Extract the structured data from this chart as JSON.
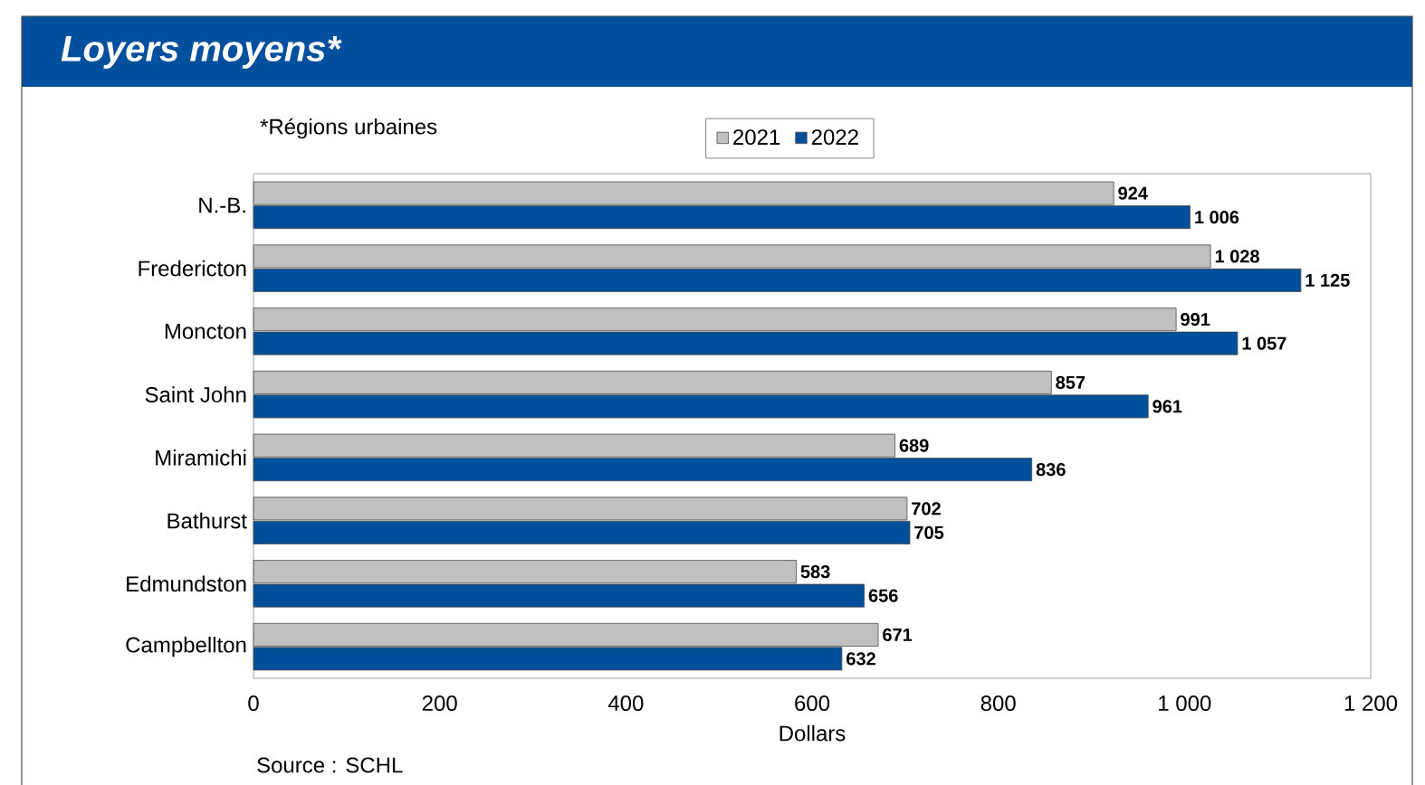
{
  "chart_data": {
    "type": "bar",
    "orientation": "horizontal",
    "title": "Loyers moyens*",
    "subtitle": "*Régions urbaines",
    "xlabel": "Dollars",
    "annotations": [
      "Source : SCHL"
    ],
    "categories": [
      "N.-B.",
      "Fredericton",
      "Moncton",
      "Saint John",
      "Miramichi",
      "Bathurst",
      "Edmundston",
      "Campbellton"
    ],
    "series": [
      {
        "name": "2021",
        "color": "#c0c0c0",
        "values": [
          924,
          1028,
          991,
          857,
          689,
          702,
          583,
          671
        ],
        "value_labels": [
          "924",
          "1 028",
          "991",
          "857",
          "689",
          "702",
          "583",
          "671"
        ]
      },
      {
        "name": "2022",
        "color": "#004f9a",
        "values": [
          1006,
          1125,
          1057,
          961,
          836,
          705,
          656,
          632
        ],
        "value_labels": [
          "1 006",
          "1 125",
          "1 057",
          "961",
          "836",
          "705",
          "656",
          "632"
        ]
      }
    ],
    "xlim": [
      0,
      1200
    ],
    "xticks": [
      0,
      200,
      400,
      600,
      800,
      {
        "value": 1000,
        "label": "1 000"
      },
      {
        "value": 1200,
        "label": "1 200"
      }
    ],
    "legend": "top"
  }
}
